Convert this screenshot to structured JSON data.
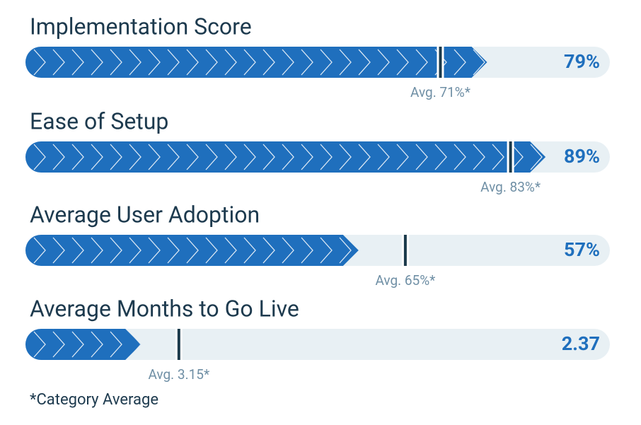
{
  "chart_data": {
    "type": "progress",
    "fill_color": "#1f6fbd",
    "track_color": "#e8f0f4",
    "marker_color": "#1b3a4b",
    "rows": [
      {
        "title": "Implementation Score",
        "value": 79,
        "value_label": "79%",
        "average": 71,
        "average_label": "Avg. 71%*",
        "xlim": [
          0,
          100
        ]
      },
      {
        "title": "Ease of Setup",
        "value": 89,
        "value_label": "89%",
        "average": 83,
        "average_label": "Avg. 83%*",
        "xlim": [
          0,
          100
        ]
      },
      {
        "title": "Average User Adoption",
        "value": 57,
        "value_label": "57%",
        "average": 65,
        "average_label": "Avg. 65%*",
        "xlim": [
          0,
          100
        ]
      },
      {
        "title": "Average Months to Go Live",
        "value": 2.37,
        "value_label": "2.37",
        "average": 3.15,
        "average_label": "Avg. 3.15*",
        "xlim": [
          0,
          12
        ]
      }
    ],
    "footnote": "*Category Average"
  }
}
